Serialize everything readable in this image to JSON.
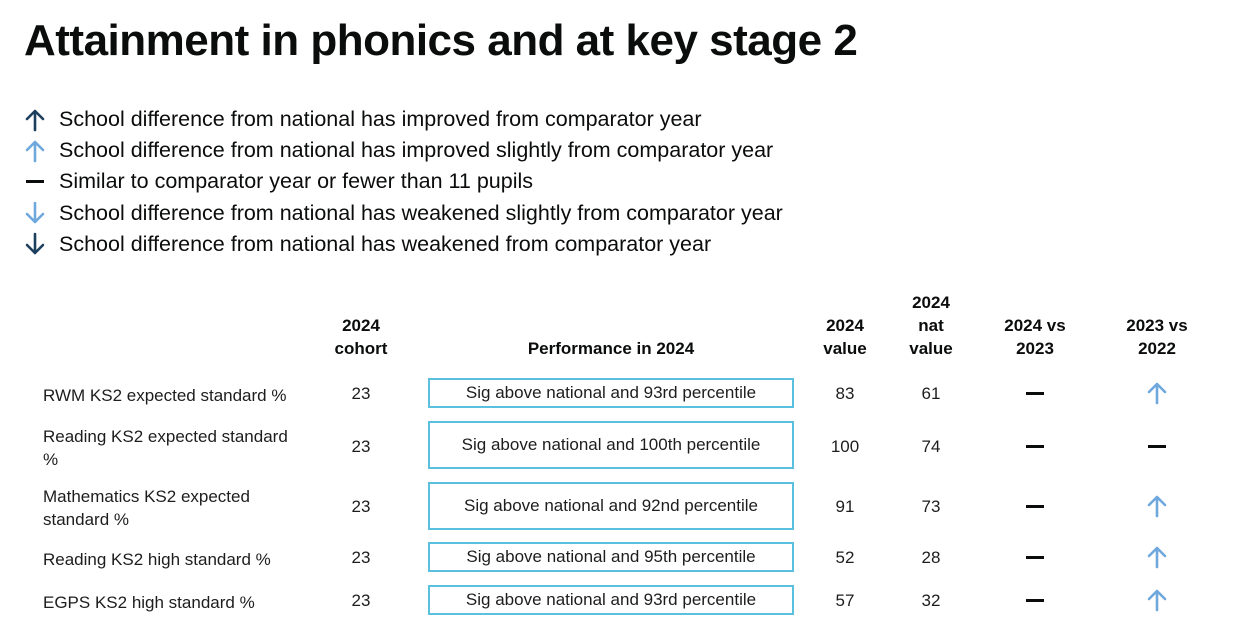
{
  "title": "Attainment in phonics and at key stage 2",
  "legend": [
    {
      "icon": "arrow-up-dark-icon",
      "text": "School difference from national has improved from comparator year"
    },
    {
      "icon": "arrow-up-light-icon",
      "text": "School difference from national has improved slightly from comparator year"
    },
    {
      "icon": "dash-icon",
      "text": "Similar to comparator year or fewer than 11 pupils"
    },
    {
      "icon": "arrow-down-light-icon",
      "text": "School difference from national has weakened slightly from comparator year"
    },
    {
      "icon": "arrow-down-dark-icon",
      "text": "School difference from national has weakened from comparator year"
    }
  ],
  "colors": {
    "dark_arrow": "#1d3f5e",
    "light_arrow": "#6fa8dc",
    "box_border": "#5bc0de"
  },
  "table": {
    "headers": {
      "cohort": [
        "2024",
        "cohort"
      ],
      "performance": [
        "Performance in 2024"
      ],
      "value": [
        "2024",
        "value"
      ],
      "nat_value": [
        "2024",
        "nat",
        "value"
      ],
      "vs_2023": [
        "2024 vs",
        "2023"
      ],
      "vs_2022": [
        "2023 vs",
        "2022"
      ]
    },
    "rows": [
      {
        "label_lines": [
          "RWM KS2 expected standard %"
        ],
        "cohort": "23",
        "performance": "Sig above national and 93rd percentile",
        "value": "83",
        "nat_value": "61",
        "vs_2023": "dash-icon",
        "vs_2022": "arrow-up-light-icon"
      },
      {
        "label_lines": [
          "Reading KS2 expected standard",
          "%"
        ],
        "cohort": "23",
        "performance": "Sig above national and 100th percentile",
        "value": "100",
        "nat_value": "74",
        "vs_2023": "dash-icon",
        "vs_2022": "dash-icon"
      },
      {
        "label_lines": [
          "Mathematics KS2 expected",
          "standard %"
        ],
        "cohort": "23",
        "performance": "Sig above national and 92nd percentile",
        "value": "91",
        "nat_value": "73",
        "vs_2023": "dash-icon",
        "vs_2022": "arrow-up-light-icon"
      },
      {
        "label_lines": [
          "Reading KS2 high standard %"
        ],
        "cohort": "23",
        "performance": "Sig above national and 95th percentile",
        "value": "52",
        "nat_value": "28",
        "vs_2023": "dash-icon",
        "vs_2022": "arrow-up-light-icon"
      },
      {
        "label_lines": [
          "EGPS KS2 high standard %"
        ],
        "cohort": "23",
        "performance": "Sig above national and 93rd percentile",
        "value": "57",
        "nat_value": "32",
        "vs_2023": "dash-icon",
        "vs_2022": "arrow-up-light-icon"
      }
    ]
  }
}
